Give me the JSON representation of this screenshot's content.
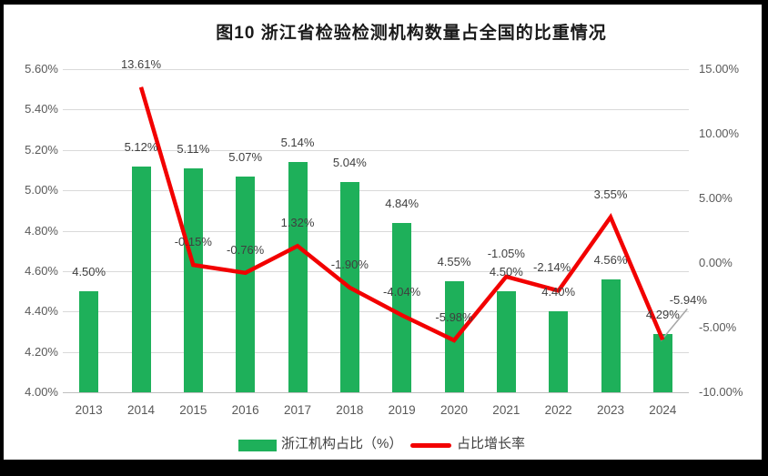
{
  "page": {
    "background_color": "#000000",
    "panel_color": "#ffffff"
  },
  "title": "图10  浙江省检验检测机构数量占全国的比重情况",
  "legend": {
    "bar_label": "浙江机构占比（%）",
    "line_label": "占比增长率"
  },
  "colors": {
    "bar": "#1eb05a",
    "line": "#f20000",
    "leader_line": "#a6a6a6",
    "gridline": "#d9d9d9",
    "axis_line": "#bfbfbf",
    "axis_text": "#595959",
    "data_label_text": "#3f3f3f",
    "title_text": "#1a1a1a"
  },
  "chart_data": {
    "type": "bar",
    "subtype": "combo-bar-line",
    "title": "图10  浙江省检验检测机构数量占全国的比重情况",
    "categories": [
      "2013",
      "2014",
      "2015",
      "2016",
      "2017",
      "2018",
      "2019",
      "2020",
      "2021",
      "2022",
      "2023",
      "2024"
    ],
    "series": [
      {
        "name": "浙江机构占比（%）",
        "type": "bar",
        "axis": "left",
        "color": "#1eb05a",
        "values": [
          4.5,
          5.12,
          5.11,
          5.07,
          5.14,
          5.04,
          4.84,
          4.55,
          4.5,
          4.4,
          4.56,
          4.29
        ],
        "labels": [
          "4.50%",
          "5.12%",
          "5.11%",
          "5.07%",
          "5.14%",
          "5.04%",
          "4.84%",
          "4.55%",
          "4.50%",
          "4.40%",
          "4.56%",
          "4.29%"
        ]
      },
      {
        "name": "占比增长率",
        "type": "line",
        "axis": "right",
        "color": "#f20000",
        "values": [
          null,
          13.61,
          -0.15,
          -0.76,
          1.32,
          -1.9,
          -4.04,
          -5.98,
          -1.05,
          -2.14,
          3.55,
          -5.94
        ],
        "labels": [
          null,
          "13.61%",
          "-0.15%",
          "-0.76%",
          "1.32%",
          "-1.90%",
          "-4.04%",
          "-5.98%",
          "-1.05%",
          "-2.14%",
          "3.55%",
          "-5.94%"
        ]
      }
    ],
    "left_axis": {
      "label": "",
      "min": 4.0,
      "max": 5.6,
      "tick_step": 0.2,
      "ticks": [
        "5.60%",
        "5.40%",
        "5.20%",
        "5.00%",
        "4.80%",
        "4.60%",
        "4.40%",
        "4.20%",
        "4.00%"
      ]
    },
    "right_axis": {
      "label": "",
      "min": -10.0,
      "max": 15.0,
      "tick_step": 5.0,
      "ticks": [
        "15.00%",
        "10.00%",
        "5.00%",
        "0.00%",
        "-5.00%",
        "-10.00%"
      ]
    },
    "xlabel": "",
    "ylabel": "",
    "grid": true,
    "legend_position": "bottom"
  }
}
